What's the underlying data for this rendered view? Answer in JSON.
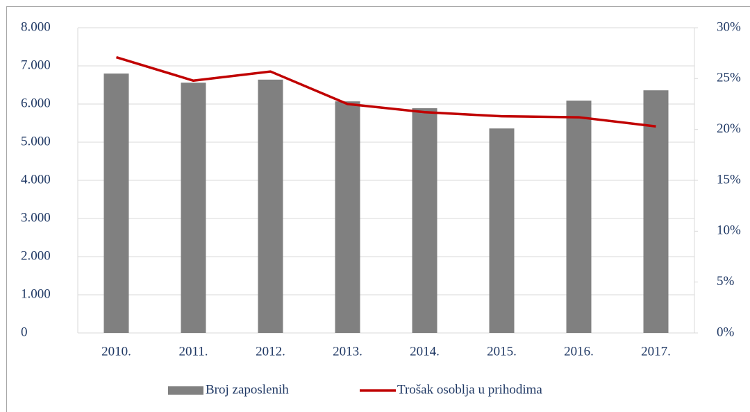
{
  "chart_data": {
    "type": "bar-line",
    "categories": [
      "2010.",
      "2011.",
      "2012.",
      "2013.",
      "2014.",
      "2015.",
      "2016.",
      "2017."
    ],
    "series": [
      {
        "name": "Broj zaposlenih",
        "type": "bar",
        "color": "#808080",
        "values": [
          6800,
          6560,
          6640,
          6070,
          5890,
          5360,
          6090,
          6360
        ]
      },
      {
        "name": "Trošak osoblja u prihodima",
        "type": "line",
        "axis": "y2",
        "color": "#c00000",
        "values": [
          27.1,
          24.8,
          25.7,
          22.5,
          21.7,
          21.3,
          21.2,
          20.3
        ]
      }
    ],
    "ylim": [
      0,
      8000
    ],
    "yticks": [
      0,
      {
        "value": 1000,
        "label": "1.000"
      },
      {
        "value": 2000,
        "label": "2.000"
      },
      {
        "value": 3000,
        "label": "3.000"
      },
      {
        "value": 4000,
        "label": "4.000"
      },
      {
        "value": 5000,
        "label": "5.000"
      },
      {
        "value": 6000,
        "label": "6.000"
      },
      {
        "value": 7000,
        "label": "7.000"
      },
      {
        "value": 8000,
        "label": "8.000"
      }
    ],
    "y2lim": [
      0,
      30
    ],
    "y2ticks": [
      {
        "value": 0,
        "label": "0%"
      },
      {
        "value": 5,
        "label": "5%"
      },
      {
        "value": 10,
        "label": "10%"
      },
      {
        "value": 15,
        "label": "15%"
      },
      {
        "value": 20,
        "label": "20%"
      },
      {
        "value": 25,
        "label": "25%"
      },
      {
        "value": 30,
        "label": "30%"
      }
    ],
    "grid": true,
    "legend": "bottom"
  }
}
